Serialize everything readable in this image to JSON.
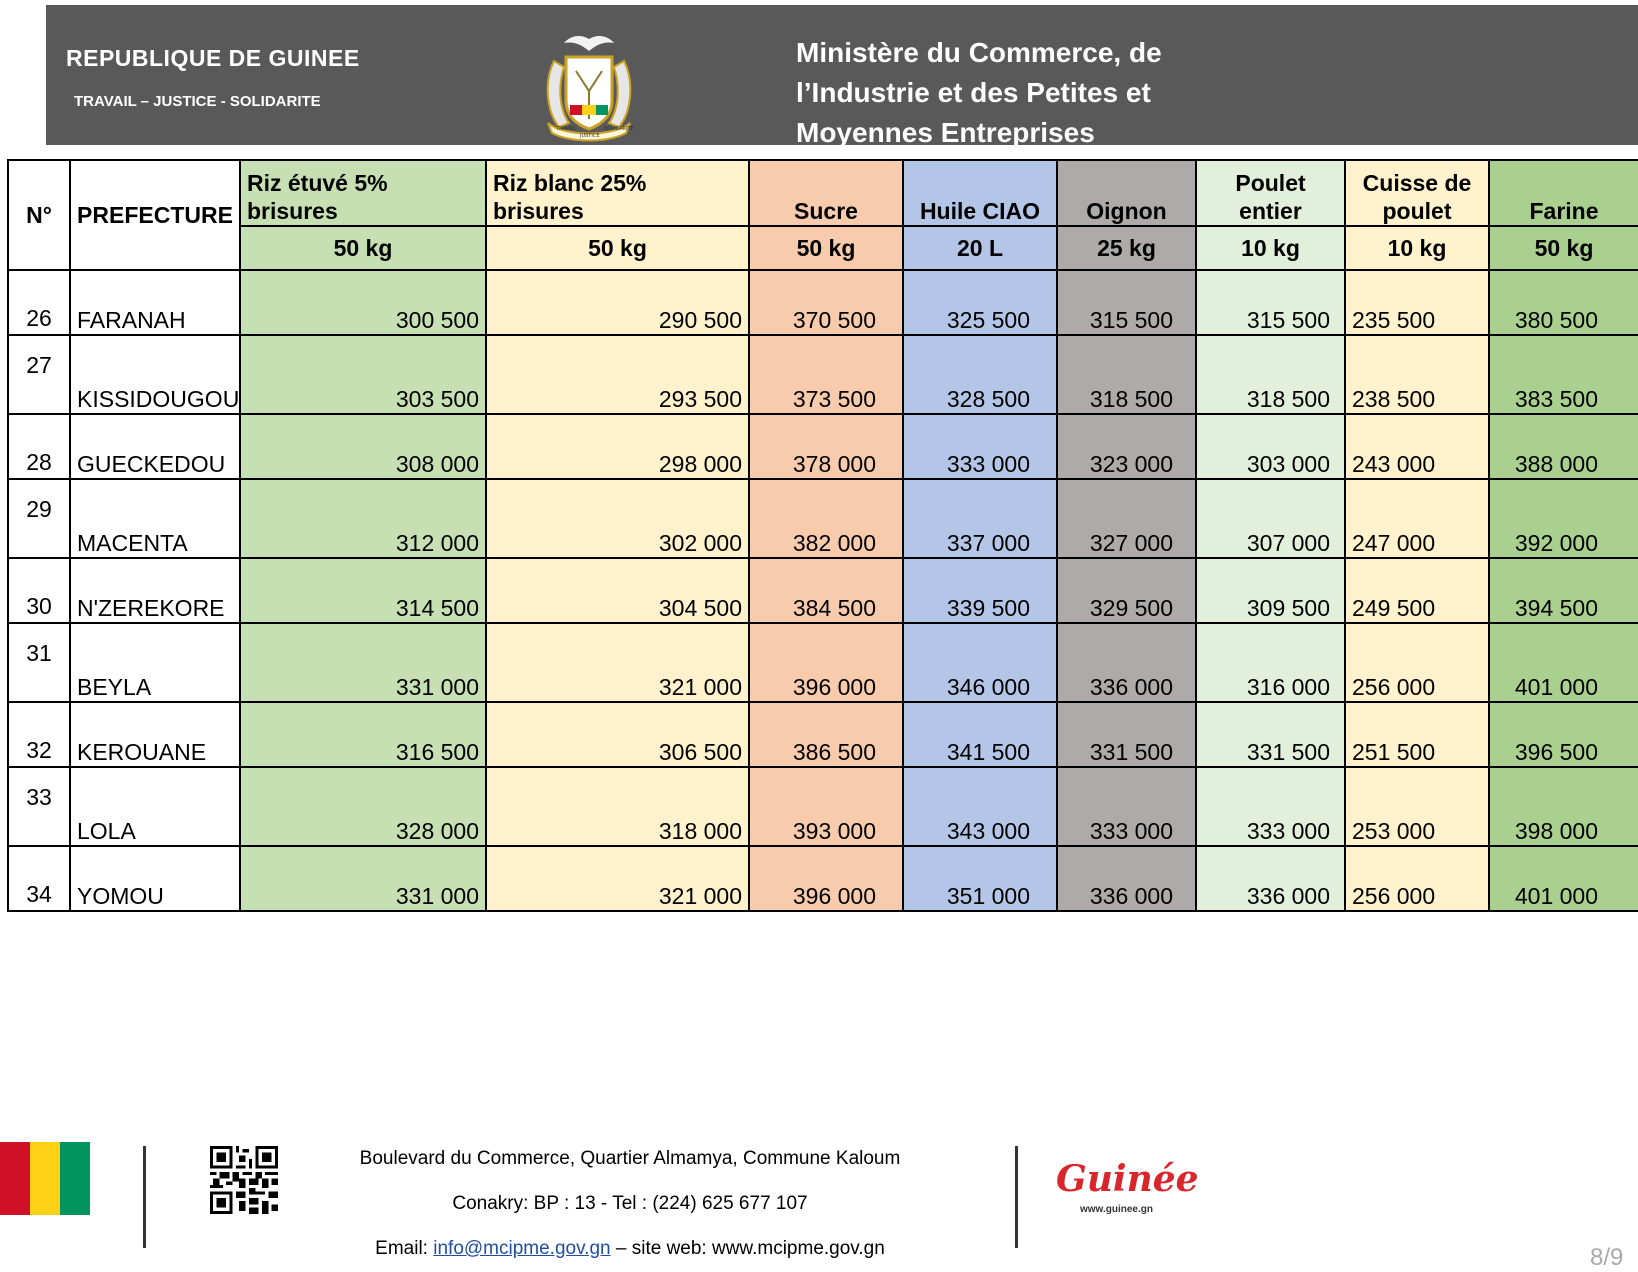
{
  "header": {
    "republic": "REPUBLIQUE DE GUINEE",
    "motto": "TRAVAIL – JUSTICE - SOLIDARITE",
    "ministry_lines": [
      "Ministère du Commerce, de",
      "l’Industrie et des Petites et",
      "Moyennes Entreprises"
    ],
    "emblem_words": [
      "TRAVAIL",
      "JUSTICE",
      "SOLIDARITE"
    ]
  },
  "table": {
    "col_no": "N°",
    "col_prefecture": "PREFECTURE",
    "products": [
      {
        "name": "Riz étuvé 5% brisures",
        "unit": "50 kg"
      },
      {
        "name": "Riz blanc 25% brisures",
        "unit": "50 kg"
      },
      {
        "name": "Sucre",
        "unit": "50 kg"
      },
      {
        "name": "Huile CIAO",
        "unit": "20 L"
      },
      {
        "name": "Oignon",
        "unit": "25 kg"
      },
      {
        "name_line1": "Poulet",
        "name_line2": "entier",
        "unit": "10 kg"
      },
      {
        "name_line1": "Cuisse de",
        "name_line2": "poulet",
        "unit": "10 kg"
      },
      {
        "name": "Farine",
        "unit": "50 kg"
      }
    ],
    "rows": [
      {
        "n": "26",
        "prefecture": "FARANAH",
        "values": [
          "300 500",
          "290 500",
          "370 500",
          "325 500",
          "315 500",
          "315 500",
          "235 500",
          "380 500"
        ]
      },
      {
        "n": "27",
        "prefecture": "KISSIDOUGOU",
        "values": [
          "303 500",
          "293 500",
          "373 500",
          "328 500",
          "318 500",
          "318 500",
          "238 500",
          "383 500"
        ]
      },
      {
        "n": "28",
        "prefecture": "GUECKEDOU",
        "values": [
          "308 000",
          "298 000",
          "378 000",
          "333 000",
          "323 000",
          "303 000",
          "243 000",
          "388 000"
        ]
      },
      {
        "n": "29",
        "prefecture": "MACENTA",
        "values": [
          "312 000",
          "302 000",
          "382 000",
          "337 000",
          "327 000",
          "307 000",
          "247 000",
          "392 000"
        ]
      },
      {
        "n": "30",
        "prefecture": "N'ZEREKORE",
        "values": [
          "314 500",
          "304 500",
          "384 500",
          "339 500",
          "329 500",
          "309 500",
          "249 500",
          "394 500"
        ]
      },
      {
        "n": "31",
        "prefecture": "BEYLA",
        "values": [
          "331 000",
          "321 000",
          "396 000",
          "346 000",
          "336 000",
          "316 000",
          "256 000",
          "401 000"
        ]
      },
      {
        "n": "32",
        "prefecture": "KEROUANE",
        "values": [
          "316 500",
          "306 500",
          "386 500",
          "341 500",
          "331 500",
          "331 500",
          "251 500",
          "396 500"
        ]
      },
      {
        "n": "33",
        "prefecture": "LOLA",
        "values": [
          "328 000",
          "318 000",
          "393 000",
          "343 000",
          "333 000",
          "333 000",
          "253 000",
          "398 000"
        ]
      },
      {
        "n": "34",
        "prefecture": "YOMOU",
        "values": [
          "331 000",
          "321 000",
          "396 000",
          "351 000",
          "336 000",
          "336 000",
          "256 000",
          "401 000"
        ]
      }
    ]
  },
  "footer": {
    "address": "Boulevard du Commerce, Quartier Almamya, Commune Kaloum",
    "contact": "Conakry: BP : 13 - Tel : (224) 625 677 107",
    "email_label": "Email: ",
    "email": "info@mcipme.gov.gn",
    "site": " – site web: www.mcipme.gov.gn",
    "logo_text": "Guinée",
    "logo_url": "www.guinee.gn",
    "page_number": "8/9"
  },
  "colors": {
    "header_bg": "#595959",
    "flag": [
      "#ce1126",
      "#fcd116",
      "#009460"
    ],
    "riz5": "#c6e0b4",
    "riz25": "#fff2cc",
    "sucre": "#f8cbad",
    "huile": "#b4c6e7",
    "oignon": "#aeaaaa",
    "poulet": "#e2efda",
    "cuisse": "#fff2cc",
    "farine": "#a9d08e"
  }
}
